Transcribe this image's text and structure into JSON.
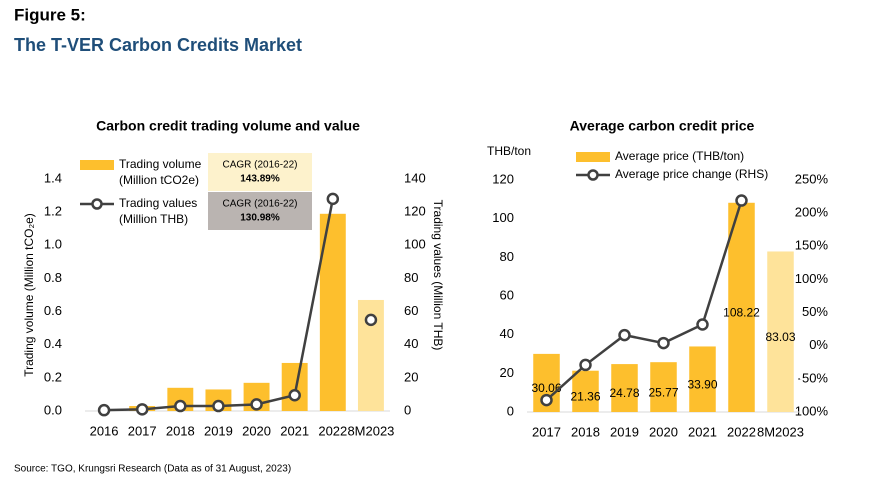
{
  "figure_label": "Figure 5:",
  "title": "The T-VER Carbon Credits Market",
  "source": "Source: TGO, Krungsri Research (Data as of 31 August, 2023)",
  "chart_data": [
    {
      "type": "bar_line",
      "title": "Carbon credit trading volume and value",
      "ylabel": "Trading volume (Million tCO₂e)",
      "y2label": "Trading values (Million THB)",
      "categories": [
        "2016",
        "2017",
        "2018",
        "2019",
        "2020",
        "2021",
        "2022",
        "8M2023"
      ],
      "series": [
        {
          "name": "Trading volume\n(Million tCO2e)",
          "type": "bar",
          "color": "#fdbf2d",
          "point_colors": [
            "#fdbf2d",
            "#fdbf2d",
            "#fdbf2d",
            "#fdbf2d",
            "#fdbf2d",
            "#fdbf2d",
            "#fdbf2d",
            "#fee39a"
          ],
          "values": [
            0.0,
            0.03,
            0.14,
            0.13,
            0.17,
            0.29,
            1.19,
            0.67
          ]
        },
        {
          "name": "Trading values\n(Million THB)",
          "type": "line",
          "axis": "y2",
          "color": "#404040",
          "values": [
            0.5,
            1,
            3,
            3,
            4,
            9.5,
            128,
            55
          ]
        }
      ],
      "ylim": [
        0,
        1.4
      ],
      "yticks": [
        {
          "value": 0,
          "label": "0.0"
        },
        0.2,
        0.4,
        0.6,
        0.8,
        {
          "value": 1,
          "label": "1.0"
        },
        1.2,
        1.4
      ],
      "y2lim": [
        0,
        140
      ],
      "y2ticks": [
        0,
        20,
        40,
        60,
        80,
        100,
        120,
        140
      ],
      "annotations": [
        {
          "text": "CAGR (2016-22)",
          "value": "143.89%",
          "color": "#fdf2cc"
        },
        {
          "text": "CAGR (2016-22)",
          "value": "130.98%",
          "color": "#bab4b1"
        }
      ]
    },
    {
      "type": "bar_line",
      "title": "Average carbon credit price",
      "ylabel": "THB/ton",
      "categories": [
        "2017",
        "2018",
        "2019",
        "2020",
        "2021",
        "2022",
        "8M2023"
      ],
      "series": [
        {
          "name": "Average price (THB/ton)",
          "type": "bar",
          "color": "#fdbf2d",
          "point_colors": [
            "#fdbf2d",
            "#fdbf2d",
            "#fdbf2d",
            "#fdbf2d",
            "#fdbf2d",
            "#fdbf2d",
            "#fee39a"
          ],
          "values": [
            30.06,
            21.36,
            24.78,
            25.77,
            33.9,
            108.22,
            83.03
          ],
          "value_labels": [
            "30.06",
            "21.36",
            "24.78",
            "25.77",
            "33.90",
            "108.22",
            "83.03"
          ]
        },
        {
          "name": "Average price change (RHS)",
          "type": "line",
          "axis": "y2",
          "color": "#404040",
          "values": [
            -82,
            -29,
            16,
            4,
            32,
            219,
            null
          ]
        }
      ],
      "ylim": [
        0,
        120
      ],
      "yticks": [
        0,
        20,
        40,
        60,
        80,
        100,
        120
      ],
      "y2lim": [
        -100,
        250
      ],
      "y2ticks": [
        {
          "value": -100,
          "label": "-100%"
        },
        {
          "value": -50,
          "label": "-50%"
        },
        {
          "value": 0,
          "label": "0%"
        },
        {
          "value": 50,
          "label": "50%"
        },
        {
          "value": 100,
          "label": "100%"
        },
        {
          "value": 150,
          "label": "150%"
        },
        {
          "value": 200,
          "label": "200%"
        },
        {
          "value": 250,
          "label": "250%"
        }
      ]
    }
  ]
}
